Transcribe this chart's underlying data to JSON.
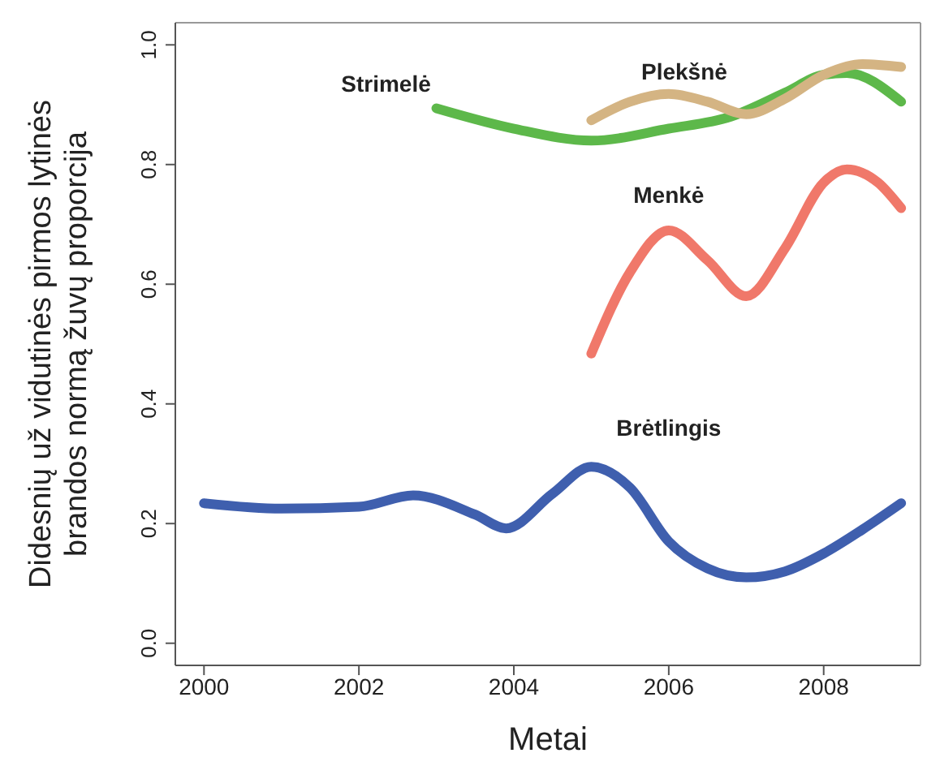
{
  "chart_data": {
    "type": "line",
    "xlabel": "Metai",
    "ylabel": "Didesnių už vidutinės pirmos lytinės\nbrandos normą žuvų proporcija",
    "xlim": [
      1999.63,
      2009.25
    ],
    "xticks": [
      2000,
      2002,
      2004,
      2006,
      2008
    ],
    "ylim": [
      -0.037,
      1.037
    ],
    "yticks": [
      {
        "value": 0,
        "label": "0.0"
      },
      {
        "value": 0.2,
        "label": "0.2"
      },
      {
        "value": 0.4,
        "label": "0.4"
      },
      {
        "value": 0.6,
        "label": "0.6"
      },
      {
        "value": 0.8,
        "label": "0.8"
      },
      {
        "value": 1,
        "label": "1.0"
      }
    ],
    "marker": "none",
    "line_style": "solid",
    "series": [
      {
        "name": "Strimelė",
        "color": "#5db84a",
        "x": [
          2003,
          2004,
          2005,
          2006,
          2006.8,
          2007.5,
          2008,
          2008.3,
          2009
        ],
        "values": [
          0.894,
          0.86,
          0.84,
          0.86,
          0.88,
          0.92,
          0.95,
          0.953,
          0.905
        ]
      },
      {
        "name": "Plekšnė",
        "color": "#d4b483",
        "x": [
          2005,
          2005.5,
          2006,
          2006.5,
          2007,
          2007.5,
          2008,
          2008.5,
          2009
        ],
        "values": [
          0.874,
          0.905,
          0.918,
          0.905,
          0.884,
          0.91,
          0.95,
          0.968,
          0.963
        ]
      },
      {
        "name": "Menkė",
        "color": "#f0786a",
        "x": [
          2005,
          2005.5,
          2006,
          2006.5,
          2007,
          2007.5,
          2008,
          2008.3,
          2008.7,
          2009
        ],
        "values": [
          0.484,
          0.62,
          0.69,
          0.64,
          0.58,
          0.66,
          0.77,
          0.792,
          0.77,
          0.727
        ]
      },
      {
        "name": "Brėtlingis",
        "color": "#3f5fae",
        "x": [
          2000,
          2001,
          2002,
          2002.7,
          2003.5,
          2003.9,
          2004.5,
          2005,
          2005.5,
          2006,
          2006.5,
          2007,
          2007.5,
          2008,
          2008.5,
          2009
        ],
        "values": [
          0.234,
          0.225,
          0.228,
          0.247,
          0.215,
          0.192,
          0.25,
          0.295,
          0.26,
          0.17,
          0.125,
          0.11,
          0.12,
          0.15,
          0.19,
          0.234
        ]
      }
    ]
  }
}
